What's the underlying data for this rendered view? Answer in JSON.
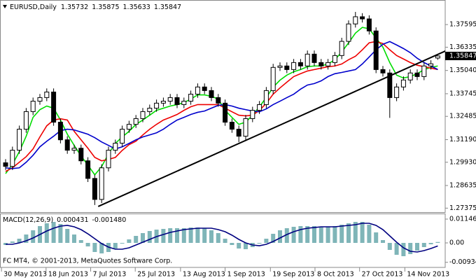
{
  "chart_data": [
    {
      "type": "candlestick",
      "title": "EURUSD,Daily",
      "candles": {
        "up_color": "#ffffff",
        "down_color": "#000000",
        "open": [
          1.299,
          1.297,
          1.306,
          1.3177,
          1.3275,
          1.3333,
          1.3353,
          1.3384,
          1.3216,
          1.3118,
          1.306,
          1.3071,
          1.3001,
          1.2903,
          1.2786,
          1.2962,
          1.306,
          1.3099,
          1.3177,
          1.3204,
          1.3236,
          1.3275,
          1.3294,
          1.3322,
          1.3333,
          1.3353,
          1.3314,
          1.3333,
          1.3372,
          1.3412,
          1.3392,
          1.3353,
          1.3322,
          1.3216,
          1.3177,
          1.3138,
          1.3236,
          1.3282,
          1.3314,
          1.3392,
          1.3521,
          1.3529,
          1.3509,
          1.3548,
          1.3529,
          1.3595,
          1.3548,
          1.3529,
          1.3548,
          1.3587,
          1.3666,
          1.3763,
          1.3803,
          1.3791,
          1.3724,
          1.3509,
          1.349,
          1.3353,
          1.3412,
          1.3451,
          1.349,
          1.347,
          1.3529,
          1.35732
        ],
        "high": [
          1.301,
          1.308,
          1.3197,
          1.3295,
          1.3353,
          1.3373,
          1.3404,
          1.3404,
          1.3236,
          1.3138,
          1.3091,
          1.3091,
          1.3021,
          1.2923,
          1.2982,
          1.308,
          1.3119,
          1.3197,
          1.3224,
          1.3256,
          1.3295,
          1.3314,
          1.3342,
          1.3353,
          1.3373,
          1.3373,
          1.3353,
          1.3392,
          1.3432,
          1.3432,
          1.3412,
          1.3373,
          1.3342,
          1.3236,
          1.3197,
          1.3256,
          1.3302,
          1.3334,
          1.3412,
          1.3541,
          1.3549,
          1.3549,
          1.3568,
          1.3568,
          1.3615,
          1.3615,
          1.3568,
          1.3568,
          1.3607,
          1.3686,
          1.3783,
          1.383,
          1.3823,
          1.3811,
          1.3744,
          1.3529,
          1.351,
          1.3432,
          1.3471,
          1.351,
          1.351,
          1.3549,
          1.3561,
          1.35875
        ],
        "low": [
          1.295,
          1.295,
          1.304,
          1.3157,
          1.3255,
          1.3313,
          1.3333,
          1.3196,
          1.3098,
          1.304,
          1.304,
          1.2981,
          1.2883,
          1.2755,
          1.2766,
          1.2942,
          1.304,
          1.3079,
          1.3157,
          1.3184,
          1.3216,
          1.3255,
          1.3274,
          1.3302,
          1.3313,
          1.3294,
          1.3294,
          1.3313,
          1.3352,
          1.3372,
          1.3333,
          1.3302,
          1.3196,
          1.3157,
          1.3105,
          1.3118,
          1.3216,
          1.3262,
          1.3294,
          1.3372,
          1.3501,
          1.3489,
          1.3489,
          1.3509,
          1.3509,
          1.3528,
          1.3509,
          1.3509,
          1.3528,
          1.3567,
          1.3646,
          1.3743,
          1.3771,
          1.3704,
          1.3489,
          1.347,
          1.324,
          1.3333,
          1.3392,
          1.3431,
          1.345,
          1.345,
          1.3509,
          1.35633
        ],
        "close": [
          1.297,
          1.306,
          1.3177,
          1.3275,
          1.3333,
          1.3353,
          1.3384,
          1.3216,
          1.3118,
          1.306,
          1.3071,
          1.3001,
          1.2903,
          1.2786,
          1.2962,
          1.306,
          1.3099,
          1.3177,
          1.3204,
          1.3236,
          1.3275,
          1.3294,
          1.3322,
          1.3333,
          1.3353,
          1.3314,
          1.3333,
          1.3372,
          1.3412,
          1.3392,
          1.3353,
          1.3322,
          1.3216,
          1.3177,
          1.3138,
          1.3236,
          1.3282,
          1.3314,
          1.3392,
          1.3521,
          1.3529,
          1.3509,
          1.3548,
          1.3529,
          1.3595,
          1.3548,
          1.3529,
          1.3548,
          1.3587,
          1.3666,
          1.3763,
          1.3803,
          1.3791,
          1.3724,
          1.3509,
          1.349,
          1.3353,
          1.3412,
          1.3451,
          1.349,
          1.347,
          1.3529,
          1.3541,
          1.35847
        ]
      },
      "series": [
        {
          "color": "#00dd00",
          "values": [
            1.293,
            1.2981,
            1.3052,
            1.3138,
            1.3243,
            1.3286,
            1.3306,
            1.3294,
            1.3228,
            1.3149,
            1.3087,
            1.3028,
            1.2977,
            1.2923,
            1.2969,
            1.304,
            1.3098,
            1.3134,
            1.3165,
            1.3204,
            1.3228,
            1.3255,
            1.3282,
            1.3294,
            1.3306,
            1.3314,
            1.3325,
            1.3345,
            1.3368,
            1.3368,
            1.336,
            1.3345,
            1.3282,
            1.3243,
            1.3204,
            1.3216,
            1.3255,
            1.3302,
            1.3353,
            1.3411,
            1.345,
            1.3478,
            1.3497,
            1.3509,
            1.3525,
            1.3529,
            1.3529,
            1.354,
            1.3564,
            1.3607,
            1.3658,
            1.3712,
            1.3744,
            1.3736,
            1.3685,
            1.3634,
            1.3548,
            1.3478,
            1.3462,
            1.347,
            1.3486,
            1.3509,
            1.3521,
            1.3529
          ]
        },
        {
          "color": "#ee0000",
          "values": [
            1.2942,
            1.2962,
            1.2993,
            1.3024,
            1.3067,
            1.3134,
            1.3196,
            1.3228,
            1.3235,
            1.3228,
            1.3165,
            1.3118,
            1.3071,
            1.302,
            1.3001,
            1.3009,
            1.302,
            1.3059,
            1.3091,
            1.311,
            1.3145,
            1.3177,
            1.3204,
            1.3228,
            1.3243,
            1.3259,
            1.3282,
            1.3302,
            1.3314,
            1.3314,
            1.3314,
            1.3314,
            1.3294,
            1.3274,
            1.3255,
            1.3251,
            1.3255,
            1.3282,
            1.3321,
            1.3372,
            1.3407,
            1.3439,
            1.347,
            1.3486,
            1.3501,
            1.3509,
            1.3517,
            1.3525,
            1.3529,
            1.354,
            1.3564,
            1.3583,
            1.3619,
            1.3658,
            1.3665,
            1.3654,
            1.3619,
            1.3587,
            1.3568,
            1.3548,
            1.3533,
            1.3525,
            1.3517,
            1.3509
          ]
        },
        {
          "color": "#0000cc",
          "values": [
            1.2962,
            1.2958,
            1.2962,
            1.2993,
            1.3032,
            1.3079,
            1.311,
            1.3138,
            1.3169,
            1.3177,
            1.3173,
            1.3161,
            1.3149,
            1.313,
            1.3106,
            1.3087,
            1.3067,
            1.3079,
            1.3098,
            1.3118,
            1.3134,
            1.3145,
            1.3157,
            1.3177,
            1.3204,
            1.3228,
            1.3243,
            1.3259,
            1.3271,
            1.3278,
            1.3294,
            1.331,
            1.3314,
            1.3306,
            1.3294,
            1.3286,
            1.3278,
            1.3274,
            1.329,
            1.3314,
            1.3333,
            1.3353,
            1.3372,
            1.34,
            1.3423,
            1.3431,
            1.3446,
            1.347,
            1.3486,
            1.3493,
            1.3501,
            1.3509,
            1.354,
            1.3579,
            1.3619,
            1.365,
            1.3665,
            1.3646,
            1.3626,
            1.3603,
            1.3572,
            1.3548,
            1.3529,
            1.3509
          ]
        }
      ],
      "trendline": {
        "color": "#000000",
        "x": [
          13.5,
          64.5
        ],
        "values": [
          1.2747,
          1.3619
        ]
      },
      "ylim": [
        1.27155,
        1.38924
      ],
      "yticks": [
        1.37595,
        1.36335,
        {
          "value": 1.3504,
          "label": "1.35040"
        },
        1.33745,
        1.32485,
        {
          "value": 1.3119,
          "label": "1.31190"
        },
        {
          "value": 1.2993,
          "label": "1.29930"
        },
        1.28635,
        1.27375
      ]
    },
    {
      "type": "macd",
      "title": "MACD(12,26,9)",
      "histogram": {
        "color": "#7fb5b8",
        "values": [
          -0.00101,
          0.00067,
          0.00202,
          0.00404,
          0.00607,
          0.00809,
          0.00944,
          0.01011,
          0.0091,
          0.00674,
          0.00404,
          0.00135,
          -0.00169,
          -0.00438,
          -0.00506,
          -0.00438,
          -0.0027,
          -0.00034,
          0.00169,
          0.00337,
          0.00472,
          0.00573,
          0.0064,
          0.00674,
          0.00708,
          0.00708,
          0.00708,
          0.00741,
          0.00741,
          0.00708,
          0.00607,
          0.00472,
          0.00202,
          -0.00101,
          -0.0027,
          -0.00303,
          -0.00202,
          -0.00034,
          0.00202,
          0.00438,
          0.00607,
          0.00708,
          0.00775,
          0.00809,
          0.00809,
          0.00809,
          0.00775,
          0.00775,
          0.00809,
          0.00876,
          0.00944,
          0.01011,
          0.01011,
          0.00876,
          0.00506,
          0.00135,
          -0.00337,
          -0.00573,
          -0.0064,
          -0.00539,
          -0.00371,
          -0.00202,
          -0.00067,
          0.000431
        ]
      },
      "signal": {
        "color": "#000080",
        "values": [
          -0.00067,
          -0.00067,
          0,
          0.00101,
          0.00236,
          0.00404,
          0.00573,
          0.00708,
          0.00809,
          0.00843,
          0.00775,
          0.0064,
          0.00438,
          0.00202,
          -0.00034,
          -0.00202,
          -0.00303,
          -0.00303,
          -0.00236,
          -0.00101,
          0.00034,
          0.00169,
          0.00303,
          0.00404,
          0.00506,
          0.00573,
          0.0064,
          0.00674,
          0.00708,
          0.00708,
          0.00708,
          0.0064,
          0.00539,
          0.00371,
          0.00169,
          0,
          -0.00101,
          -0.00135,
          -0.00067,
          0.00067,
          0.00236,
          0.00404,
          0.00539,
          0.0064,
          0.00708,
          0.00741,
          0.00775,
          0.00775,
          0.00775,
          0.00809,
          0.00843,
          0.00876,
          0.00944,
          0.00944,
          0.00843,
          0.0064,
          0.00337,
          0.00034,
          -0.00236,
          -0.00404,
          -0.00438,
          -0.00371,
          -0.0027,
          -0.00148
        ],
        "value_labels": [
          null,
          null,
          null,
          null,
          null,
          null,
          null,
          null,
          null,
          null,
          null,
          null,
          null,
          null,
          null,
          null,
          null,
          null,
          null,
          null,
          null,
          null,
          null,
          null,
          null,
          null,
          null,
          null,
          null,
          null,
          null,
          null,
          null,
          null,
          null,
          null,
          null,
          null,
          null,
          null,
          null,
          null,
          null,
          null,
          null,
          null,
          null,
          null,
          null,
          null,
          null,
          null,
          null,
          null,
          null,
          null,
          null,
          null,
          null,
          null,
          null,
          null,
          null,
          "-0.001480"
        ]
      },
      "ylim": [
        -0.01146,
        0.01382
      ],
      "yticks": [
        0.011461,
        {
          "value": 0,
          "label": "0.00"
        },
        -0.009349
      ],
      "xticks": [
        {
          "value": -0.6,
          "label": "30 May 2013"
        },
        {
          "value": 5.9,
          "label": "18 Jun 2013"
        },
        {
          "value": 12.4,
          "label": "7 Jul 2013"
        },
        {
          "value": 18.9,
          "label": "25 Jul 2013"
        },
        {
          "value": 25.5,
          "label": "13 Aug 2013"
        },
        {
          "value": 32.0,
          "label": "1 Sep 2013"
        },
        {
          "value": 38.6,
          "label": "19 Sep 2013"
        },
        {
          "value": 45.1,
          "label": "8 Oct 2013"
        },
        {
          "value": 51.6,
          "label": "27 Oct 2013"
        },
        {
          "value": 58.2,
          "label": "14 Nov 2013"
        }
      ],
      "footer": "FC MT4, © 2001-2013, MetaQuotes Software Corp."
    }
  ]
}
